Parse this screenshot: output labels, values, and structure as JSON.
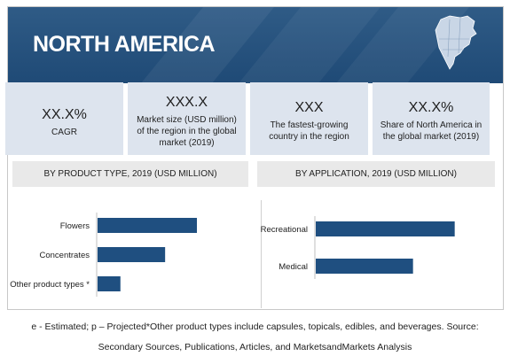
{
  "header": {
    "title": "NORTH AMERICA"
  },
  "kpis": [
    {
      "value": "XX.X%",
      "label": "CAGR"
    },
    {
      "value": "XXX.X",
      "label": "Market size (USD million) of the region in the global market (2019)"
    },
    {
      "value": "XXX",
      "label": "The fastest-growing country in the region"
    },
    {
      "value": "XX.X%",
      "label": "Share of North America in the global market (2019)"
    }
  ],
  "sections": {
    "left": "BY PRODUCT TYPE, 2019 (USD MILLION)",
    "right": "BY APPLICATION, 2019 (USD MILLION)"
  },
  "colors": {
    "banner": "#1f4a76",
    "bar": "#1f4f80",
    "kpi_bg": "#dde4ee",
    "section_bg": "#e9e9e9"
  },
  "chart_data": [
    {
      "type": "bar",
      "orientation": "horizontal",
      "categories": [
        "Flowers",
        "Concentrates",
        "Other product types *"
      ],
      "values": [
        100,
        68,
        23
      ],
      "xlim": [
        0,
        150
      ],
      "title": "BY PRODUCT TYPE, 2019 (USD MILLION)",
      "grid": false
    },
    {
      "type": "bar",
      "orientation": "horizontal",
      "categories": [
        "Recreational",
        "Medical"
      ],
      "values": [
        100,
        70
      ],
      "xlim": [
        0,
        120
      ],
      "title": "BY APPLICATION, 2019 (USD MILLION)",
      "grid": false
    }
  ],
  "footer": {
    "line1": "e - Estimated; p – Projected*Other product types include capsules, topicals, edibles, and beverages. Source:",
    "line2": "Secondary Sources, Publications, Articles, and MarketsandMarkets Analysis"
  }
}
